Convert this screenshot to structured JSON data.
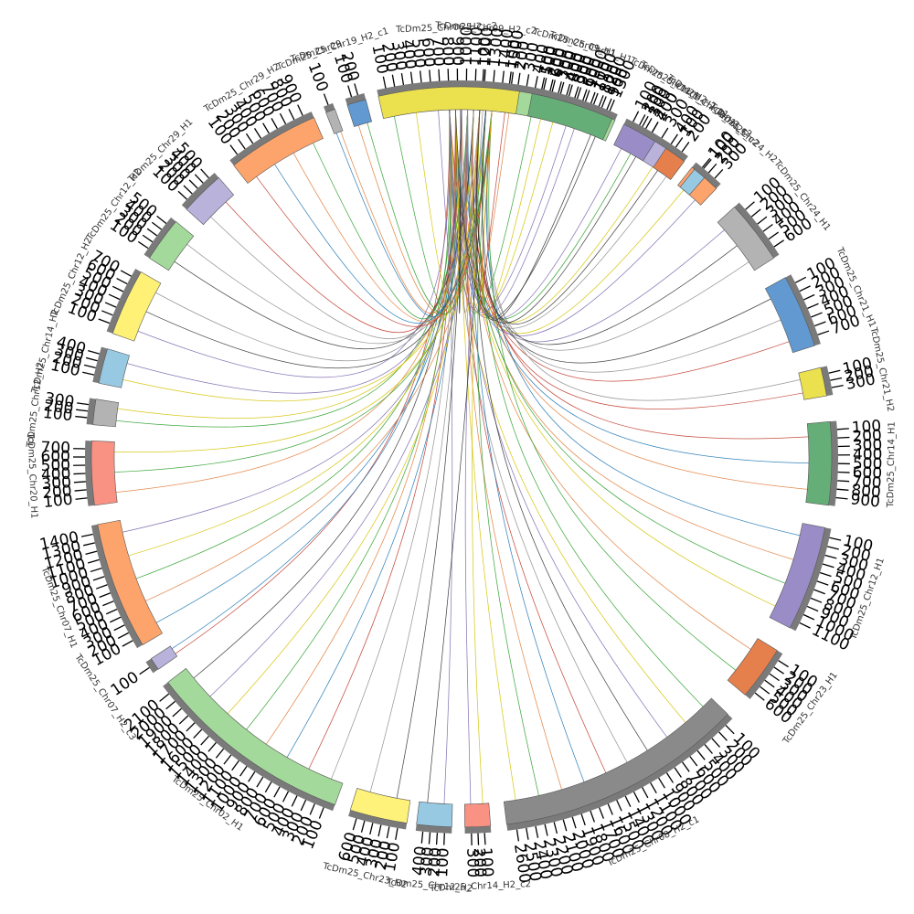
{
  "diagram": {
    "type": "circos",
    "segments": [
      {
        "label": "TcDm25_Chr09_H2_c2",
        "color": "#fff176",
        "ticks": [
          "100"
        ]
      },
      {
        "label": "TcDm25_Chr09_H1",
        "color": "#a3d99a",
        "ticks": [
          "100",
          "200",
          "300",
          "400",
          "500",
          "600",
          "700",
          "800",
          "900",
          "1000",
          "1100",
          "1200",
          "1300"
        ]
      },
      {
        "label": "TcDm25_Chr09_H2_c1",
        "color": "#b9b3dc",
        "ticks": [
          "100",
          "200",
          "300",
          "400"
        ]
      },
      {
        "label": "TcDm25_Chr24_H2",
        "color": "#fca46c",
        "ticks": [
          "100",
          "200",
          "300"
        ]
      },
      {
        "label": "TcDm25_Chr24_H1",
        "color": "#b3b3b3",
        "ticks": [
          "100",
          "200",
          "300",
          "400",
          "500",
          "600"
        ]
      },
      {
        "label": "TcDm25_Chr21_H1",
        "color": "#6199d0",
        "ticks": [
          "100",
          "200",
          "300",
          "400",
          "500",
          "600",
          "700"
        ]
      },
      {
        "label": "TcDm25_Chr21_H2",
        "color": "#ebe04e",
        "ticks": [
          "100",
          "200",
          "300"
        ]
      },
      {
        "label": "TcDm25_Chr14_H1",
        "color": "#66ae78",
        "ticks": [
          "100",
          "200",
          "300",
          "400",
          "500",
          "600",
          "700",
          "800",
          "900"
        ]
      },
      {
        "label": "TcDm25_Chr12_H1",
        "color": "#9a8cc6",
        "ticks": [
          "100",
          "200",
          "300",
          "400",
          "500",
          "600",
          "700",
          "800",
          "900",
          "1000",
          "1100"
        ]
      },
      {
        "label": "TcDm25_Chr23_H1",
        "color": "#e5804d",
        "ticks": [
          "100",
          "200",
          "300",
          "400",
          "500",
          "600"
        ]
      },
      {
        "label": "TcDm25_Chr08_H2_c1",
        "color": "#8a8a8a",
        "ticks": [
          "100",
          "200",
          "300",
          "400",
          "500",
          "600",
          "700",
          "800",
          "900",
          "1000",
          "1100",
          "1200",
          "1300",
          "1400",
          "1500",
          "1600",
          "1700",
          "1800",
          "1900",
          "2000",
          "2100",
          "2200",
          "2300",
          "2400",
          "2500",
          "2600"
        ]
      },
      {
        "label": "TcDm25_Chr14_H2_c2",
        "color": "#f99283",
        "ticks": [
          "100",
          "200",
          "300"
        ]
      },
      {
        "label": "TcDm25_Chr12_H2",
        "color": "#98c9e2",
        "ticks": [
          "100",
          "200",
          "300",
          "400"
        ]
      },
      {
        "label": "TcDm25_Chr23_H2",
        "color": "#fff27a",
        "ticks": [
          "100",
          "200",
          "300",
          "400",
          "500",
          "600"
        ]
      },
      {
        "label": "TcDm25_Chr02_H1",
        "color": "#a3d99a",
        "ticks": [
          "100",
          "200",
          "300",
          "400",
          "500",
          "600",
          "700",
          "800",
          "900",
          "1000",
          "1100",
          "1200",
          "1300",
          "1400",
          "1500",
          "1600",
          "1700",
          "1800",
          "1900",
          "2000",
          "2100"
        ]
      },
      {
        "label": "TcDm25_Chr07_H2_c3",
        "color": "#b9b3dc",
        "ticks": [
          "100"
        ]
      },
      {
        "label": "TcDm25_Chr07_H1",
        "color": "#fca46c",
        "ticks": [
          "100",
          "200",
          "300",
          "400",
          "500",
          "600",
          "700",
          "800",
          "900",
          "1000",
          "1100",
          "1200",
          "1300",
          "1400"
        ]
      },
      {
        "label": "TcDm25_Chr20_H1",
        "color": "#f99283",
        "ticks": [
          "100",
          "200",
          "300",
          "400",
          "500",
          "600",
          "700"
        ]
      },
      {
        "label": "TcDm25_Chr12_H2",
        "color": "#b3b3b3",
        "ticks": [
          "100",
          "200",
          "300"
        ]
      },
      {
        "label": "TcDm25_Chr14_H2",
        "color": "#98c9e2",
        "ticks": [
          "100",
          "200",
          "300",
          "400"
        ]
      },
      {
        "label": "TcDm25_Chr12_H2",
        "color": "#fff176",
        "ticks": [
          "100",
          "200",
          "300",
          "400",
          "500",
          "600",
          "700"
        ]
      },
      {
        "label": "TcDm25_Chr12_H2",
        "color": "#a3d99a",
        "ticks": [
          "100",
          "200",
          "300",
          "400",
          "500"
        ]
      },
      {
        "label": "TcDm25_Chr29_H1",
        "color": "#b9b3dc",
        "ticks": [
          "100",
          "200",
          "300",
          "400",
          "500"
        ]
      },
      {
        "label": "TcDm25_Chr29_H2",
        "color": "#fca46c",
        "ticks": [
          "100",
          "200",
          "300",
          "400",
          "500",
          "600",
          "700",
          "800",
          "900"
        ]
      },
      {
        "label": "TcDm25_Chr29",
        "color": "#b3b3b3",
        "ticks": [
          "100"
        ]
      },
      {
        "label": "TcDm25_Chr19_H2_c1",
        "color": "#6199d0",
        "ticks": [
          "100",
          "200"
        ]
      },
      {
        "label": "TcDm25_Chr06_H2_c2",
        "color": "#ebe04e",
        "ticks": [
          "100",
          "200",
          "300",
          "400",
          "500",
          "600",
          "700",
          "800",
          "900",
          "1000",
          "1100",
          "1200",
          "1300",
          "1400",
          "1500"
        ]
      },
      {
        "label": "TcDm25_Chr11_H1",
        "color": "#66ae78",
        "ticks": [
          "100",
          "200",
          "300",
          "400",
          "500",
          "600",
          "700",
          "800",
          "900"
        ]
      },
      {
        "label": "TcDm25_Chr11_H2",
        "color": "#9a8cc6",
        "ticks": [
          "100",
          "200",
          "300",
          "400"
        ]
      },
      {
        "label": "TcDm25_Chr09_H2_c2",
        "color": "#e5804d",
        "ticks": [
          "100",
          "200"
        ]
      },
      {
        "label": "TcDm25_c2",
        "color": "#98c9e2",
        "ticks": [
          "100"
        ]
      }
    ],
    "link_colors": [
      "#1f77b4",
      "#e07b39",
      "#2ca02c",
      "#d4c200",
      "#7b68ae",
      "#333333",
      "#8c8c8c",
      "#c0392b"
    ]
  }
}
